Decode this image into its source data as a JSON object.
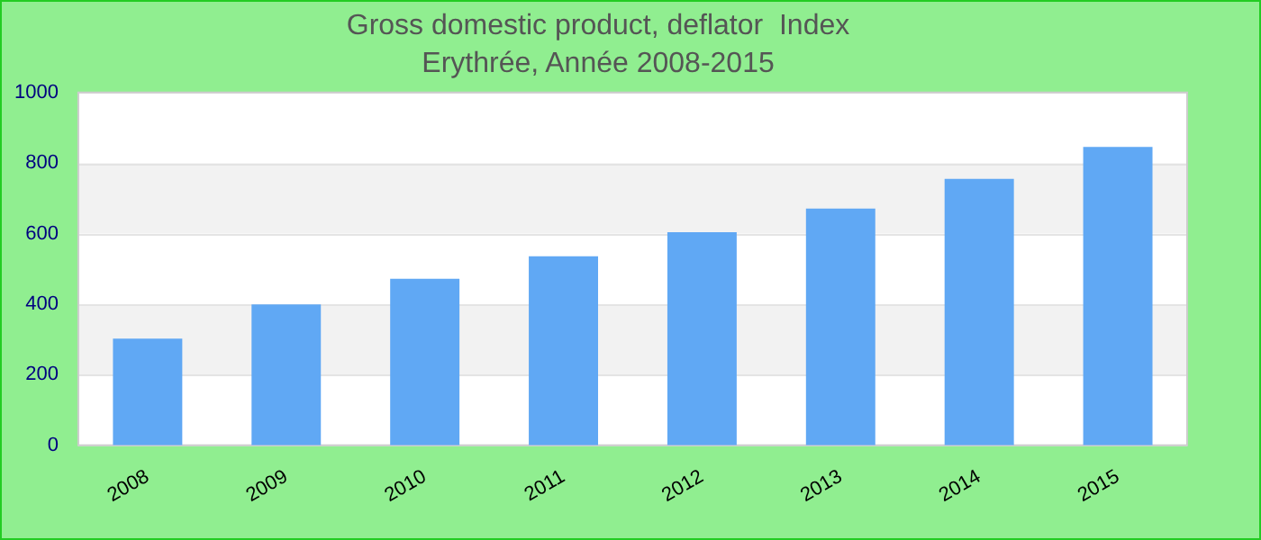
{
  "chart_data": {
    "type": "bar",
    "title": "Gross domestic product, deflator  Index",
    "subtitle": "Erythrée, Année 2008-2015",
    "categories": [
      "2008",
      "2009",
      "2010",
      "2011",
      "2012",
      "2013",
      "2014",
      "2015"
    ],
    "values": [
      302,
      399,
      472,
      536,
      604,
      671,
      755,
      846
    ],
    "color": "#60a8f4",
    "ylim": [
      0,
      1000
    ],
    "yticks": [
      0,
      200,
      400,
      600,
      800,
      1000
    ],
    "grid": "y",
    "legend": false
  }
}
